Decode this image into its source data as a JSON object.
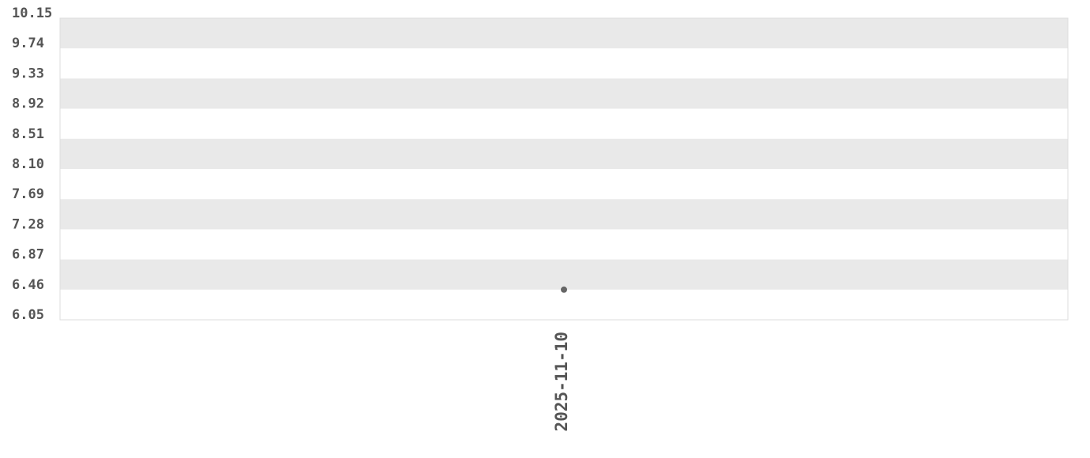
{
  "chart_data": {
    "type": "scatter",
    "title": "",
    "xlabel": "",
    "ylabel": "",
    "categories": [
      "2025-11-10"
    ],
    "values": [
      6.46
    ],
    "ylim": [
      6.05,
      10.15
    ],
    "y_ticks": [
      "10.15",
      "9.74",
      "9.33",
      "8.92",
      "8.51",
      "8.10",
      "7.69",
      "7.28",
      "6.87",
      "6.46",
      "6.05"
    ],
    "grid": "alternating horizontal bands",
    "colors": {
      "band": "#e9e9e9",
      "point": "#666666",
      "text": "#555555",
      "border": "#dddddd"
    }
  }
}
